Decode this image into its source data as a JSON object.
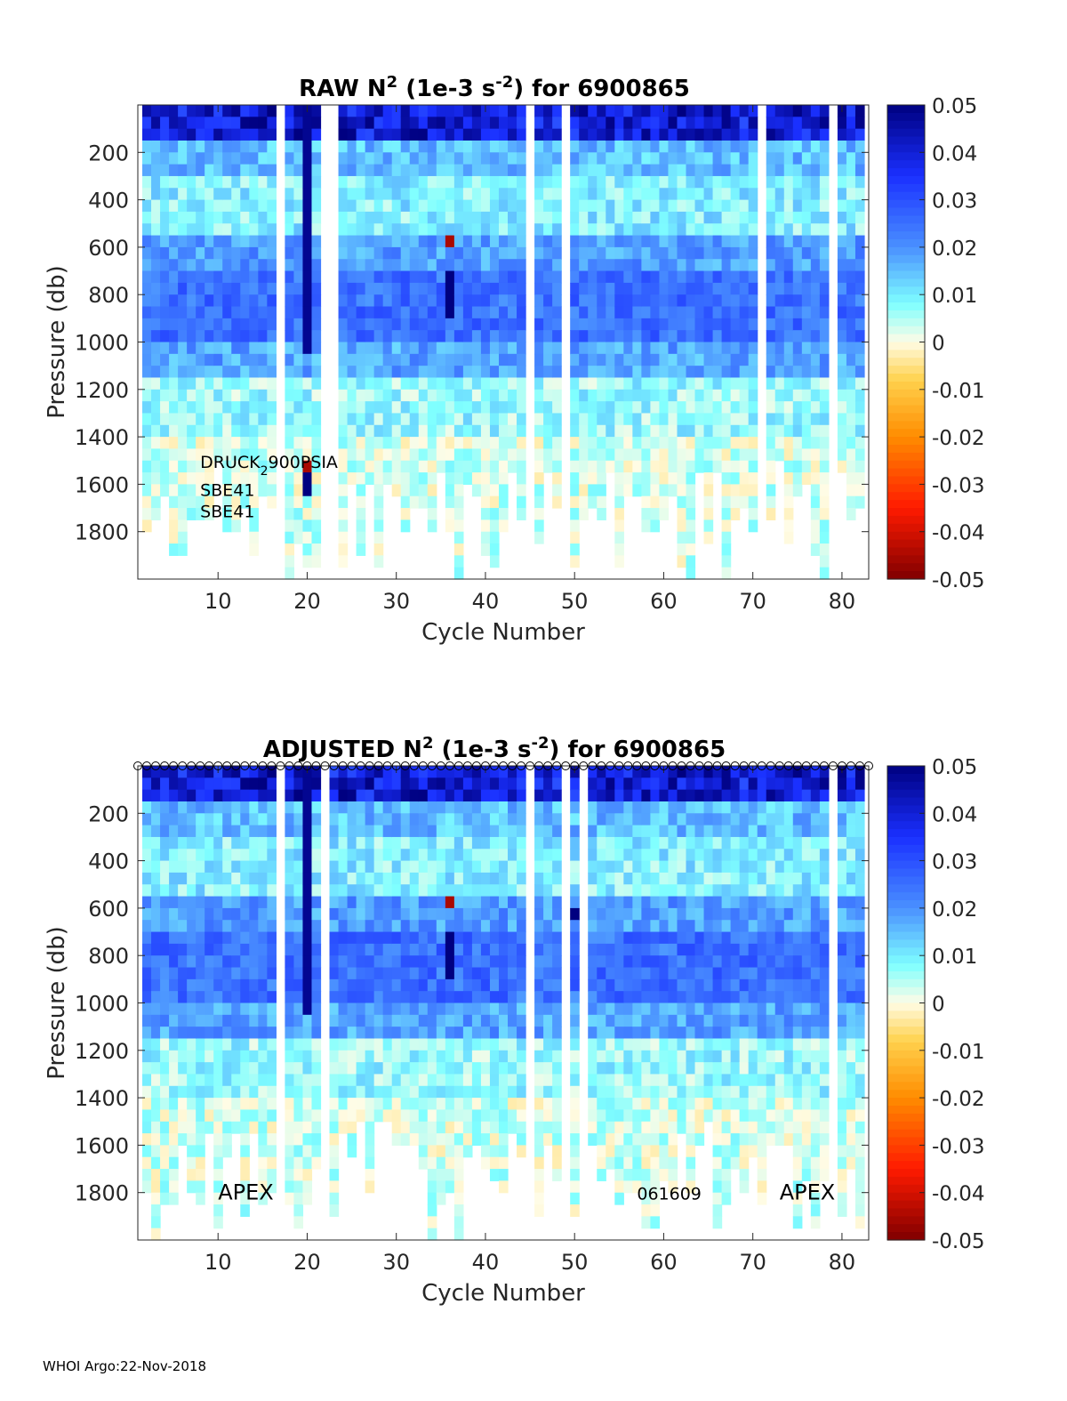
{
  "footer": "WHOI Argo:22-Nov-2018",
  "colormap": {
    "name": "jet-diverging",
    "stops": [
      {
        "v": -0.05,
        "c": "#800000"
      },
      {
        "v": -0.035,
        "c": "#ff1a00"
      },
      {
        "v": -0.02,
        "c": "#ff8c00"
      },
      {
        "v": -0.008,
        "c": "#ffd24d"
      },
      {
        "v": 0.0,
        "c": "#fffce6"
      },
      {
        "v": 0.008,
        "c": "#7fffff"
      },
      {
        "v": 0.02,
        "c": "#4a90ff"
      },
      {
        "v": 0.035,
        "c": "#1a30ff"
      },
      {
        "v": 0.05,
        "c": "#000080"
      }
    ]
  },
  "chart_data": [
    {
      "type": "heatmap",
      "title": {
        "prefix": "RAW N",
        "sup1": "2",
        "mid": " (1e-3 s",
        "sup2": "-2",
        "suffix": ") for 6900865"
      },
      "xlabel": "Cycle Number",
      "ylabel": "Pressure (db)",
      "xlim": [
        1,
        83
      ],
      "ylim": [
        0,
        2000
      ],
      "xticks": [
        10,
        20,
        30,
        40,
        50,
        60,
        70,
        80
      ],
      "yticks": [
        200,
        400,
        600,
        800,
        1000,
        1200,
        1400,
        1600,
        1800
      ],
      "colorbar": {
        "ticks": [
          "0.05",
          "0.04",
          "0.03",
          "0.02",
          "0.01",
          "0",
          "-0.01",
          "-0.02",
          "-0.03",
          "-0.04",
          "-0.05"
        ],
        "range": [
          -0.05,
          0.05
        ]
      },
      "pressure_levels": [
        25,
        75,
        125,
        175,
        225,
        275,
        325,
        375,
        425,
        475,
        525,
        575,
        625,
        675,
        725,
        775,
        825,
        875,
        925,
        975,
        1025,
        1075,
        1125,
        1175,
        1225,
        1275,
        1325,
        1375,
        1425,
        1475,
        1525,
        1575,
        1625,
        1675,
        1725,
        1775,
        1825,
        1875,
        1925,
        1975
      ],
      "profile_values_by_layer": {
        "0-150": 0.045,
        "150-300": 0.015,
        "300-550": 0.009,
        "550-700": 0.019,
        "700-1000": 0.025,
        "1000-1150": 0.018,
        "1150-1400": 0.007,
        "1400-2000": 0.003
      },
      "missing_cycles": [
        17,
        22,
        23,
        45,
        49,
        71,
        79
      ],
      "features": [
        {
          "cycle": 20,
          "pressure": [
            0,
            1050
          ],
          "value": 0.048
        },
        {
          "cycle": 36,
          "pressure": [
            560,
            610
          ],
          "value": -0.045
        },
        {
          "cycle": 36,
          "pressure": [
            700,
            900
          ],
          "value": 0.05
        },
        {
          "cycle": 20,
          "pressure": [
            1500,
            1540
          ],
          "value": -0.045
        },
        {
          "cycle": 20,
          "pressure": [
            1540,
            1640
          ],
          "value": 0.05
        }
      ],
      "annotations": [
        {
          "text": "DRUCK",
          "sub": "2",
          "rest": "900PSIA",
          "cycle": 8,
          "pressure": 1500
        },
        {
          "text": "SBE41",
          "cycle": 8,
          "pressure": 1620
        },
        {
          "text": "SBE41",
          "cycle": 8,
          "pressure": 1710
        }
      ],
      "show_markers": false
    },
    {
      "type": "heatmap",
      "title": {
        "prefix": "ADJUSTED N",
        "sup1": "2",
        "mid": " (1e-3 s",
        "sup2": "-2",
        "suffix": ") for 6900865"
      },
      "xlabel": "Cycle Number",
      "ylabel": "Pressure (db)",
      "xlim": [
        1,
        83
      ],
      "ylim": [
        0,
        2000
      ],
      "xticks": [
        10,
        20,
        30,
        40,
        50,
        60,
        70,
        80
      ],
      "yticks": [
        200,
        400,
        600,
        800,
        1000,
        1200,
        1400,
        1600,
        1800
      ],
      "colorbar": {
        "ticks": [
          "0.05",
          "0.04",
          "0.03",
          "0.02",
          "0.01",
          "0",
          "-0.01",
          "-0.02",
          "-0.03",
          "-0.04",
          "-0.05"
        ],
        "range": [
          -0.05,
          0.05
        ]
      },
      "pressure_levels": [
        25,
        75,
        125,
        175,
        225,
        275,
        325,
        375,
        425,
        475,
        525,
        575,
        625,
        675,
        725,
        775,
        825,
        875,
        925,
        975,
        1025,
        1075,
        1125,
        1175,
        1225,
        1275,
        1325,
        1375,
        1425,
        1475,
        1525,
        1575,
        1625,
        1675,
        1725,
        1775,
        1825,
        1875,
        1925,
        1975
      ],
      "profile_values_by_layer": {
        "0-150": 0.045,
        "150-300": 0.015,
        "300-550": 0.009,
        "550-700": 0.019,
        "700-1000": 0.025,
        "1000-1150": 0.018,
        "1150-1400": 0.007,
        "1400-2000": 0.003
      },
      "missing_cycles": [
        17,
        22,
        45,
        49,
        51,
        79
      ],
      "features": [
        {
          "cycle": 20,
          "pressure": [
            0,
            1050
          ],
          "value": 0.048
        },
        {
          "cycle": 22,
          "pressure": [
            480,
            800
          ],
          "value": -0.004
        },
        {
          "cycle": 36,
          "pressure": [
            560,
            610
          ],
          "value": -0.045
        },
        {
          "cycle": 36,
          "pressure": [
            700,
            900
          ],
          "value": 0.05
        },
        {
          "cycle": 50,
          "pressure": [
            600,
            640
          ],
          "value": 0.05
        }
      ],
      "annotations": [
        {
          "text": "APEX",
          "cycle": 10,
          "pressure": 1800
        },
        {
          "text": "061609",
          "cycle": 57,
          "pressure": 1800
        },
        {
          "text": "APEX",
          "cycle": 73,
          "pressure": 1800
        }
      ],
      "show_markers": true
    }
  ]
}
